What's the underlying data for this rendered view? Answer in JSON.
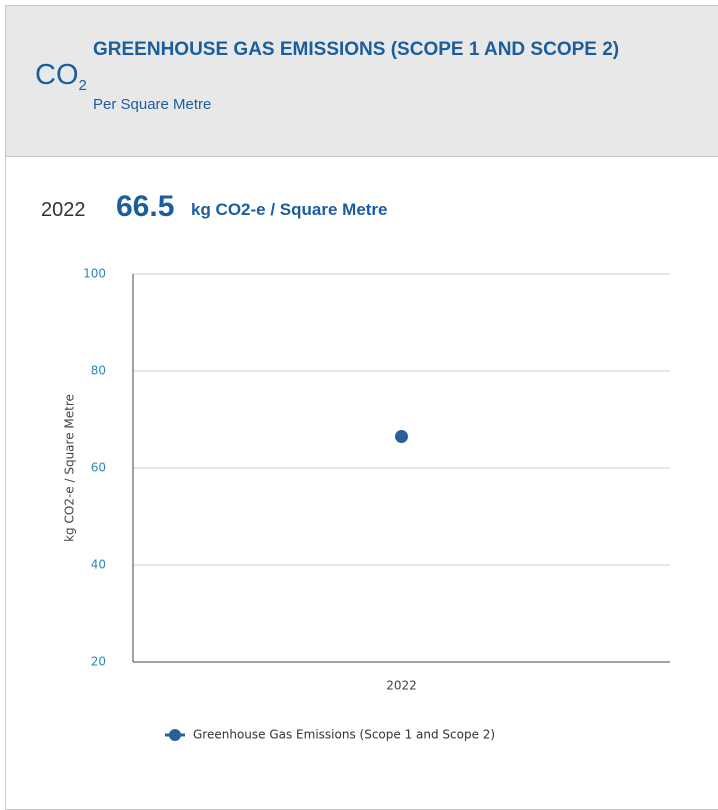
{
  "header": {
    "icon": "CO",
    "icon_sub": "2",
    "title": "GREENHOUSE GAS EMISSIONS (SCOPE 1 AND SCOPE 2)",
    "subtitle": "Per Square Metre"
  },
  "kpi": {
    "year": "2022",
    "value": 66.5,
    "unit": "kg CO2-e / Square Metre"
  },
  "chart_data": {
    "type": "scatter",
    "categories": [
      "2022"
    ],
    "series": [
      {
        "name": "Greenhouse Gas Emissions (Scope 1 and Scope 2)",
        "color": "#2a6099",
        "values": [
          66.5
        ]
      }
    ],
    "ylabel": "kg CO2-e / Square Metre",
    "ylim": [
      20,
      100
    ],
    "yticks": [
      20,
      40,
      60,
      80,
      100
    ],
    "grid": true,
    "legend": "bottom"
  }
}
